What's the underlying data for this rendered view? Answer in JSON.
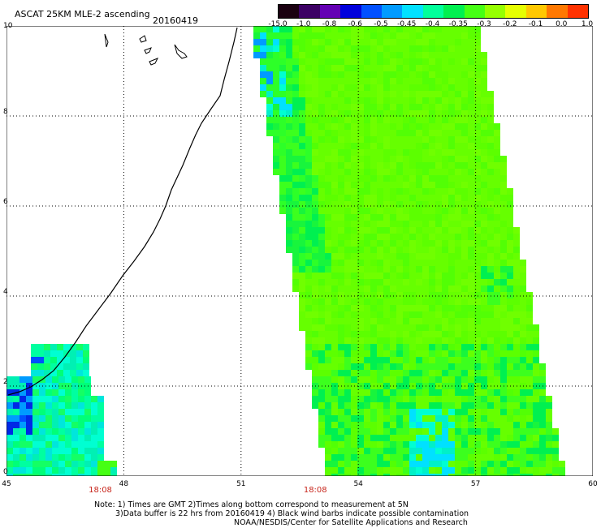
{
  "header": {
    "title": "ASCAT 25KM MLE-2 ascending",
    "date": "20160419"
  },
  "colorbar": {
    "labels": [
      "-15.0",
      "-1.0",
      "-0.8",
      "-0.6",
      "-0.5",
      "-0.45",
      "-0.4",
      "-0.35",
      "-0.3",
      "-0.2",
      "-0.1",
      "0.0",
      "1.0"
    ],
    "colors": [
      "#1a0010",
      "#3c0064",
      "#6400b4",
      "#0000dc",
      "#0050ff",
      "#009bff",
      "#00e1ff",
      "#00ff9b",
      "#00f050",
      "#46ff14",
      "#96ff00",
      "#e6ff00",
      "#ffc800",
      "#ff7800",
      "#ff3200"
    ]
  },
  "axes": {
    "y_ticks": [
      "10",
      "8",
      "6",
      "4",
      "2",
      "0"
    ],
    "x_ticks": [
      "45",
      "48",
      "51",
      "54",
      "57",
      "60"
    ],
    "x_range": [
      45,
      60
    ],
    "y_range": [
      0,
      10
    ]
  },
  "pass_times": [
    {
      "lon": 47.4,
      "label": "18:08"
    },
    {
      "lon": 52.9,
      "label": "18:08"
    }
  ],
  "notes": {
    "line1": "Note: 1) Times are GMT 2)Times along bottom correspond to measurement at 5N",
    "line2": "3)Data buffer is 22 hrs from 20160419 4) Black wind barbs indicate possible contamination",
    "line3": "NOAA/NESDIS/Center for Satellite Applications and Research"
  }
}
